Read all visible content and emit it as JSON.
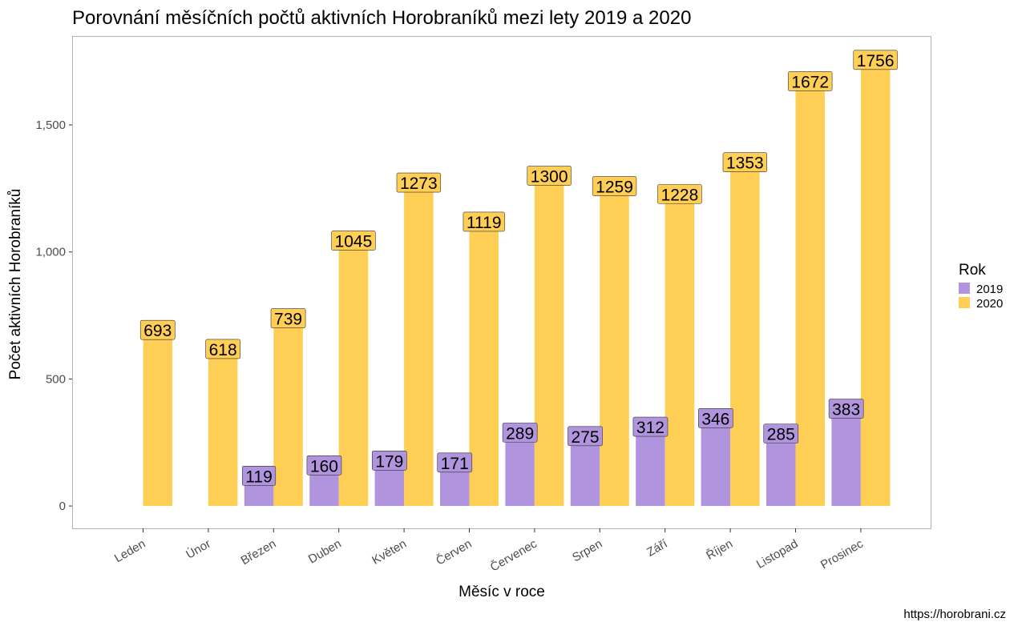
{
  "chart_data": {
    "type": "bar",
    "title": "Porovnání měsíčních počtů aktivních Horobraníků mezi lety 2019 a 2020",
    "xlabel": "Měsíc v roce",
    "ylabel": "Počet aktivních Horobraníků",
    "caption": "https://horobrani.cz",
    "categories": [
      "Leden",
      "Únor",
      "Březen",
      "Duben",
      "Květen",
      "Červen",
      "Červenec",
      "Srpen",
      "Září",
      "Říjen",
      "Listopad",
      "Prosinec"
    ],
    "series": [
      {
        "name": "2019",
        "color": "#b095de",
        "values": [
          null,
          null,
          119,
          160,
          179,
          171,
          289,
          275,
          312,
          346,
          285,
          383
        ]
      },
      {
        "name": "2020",
        "color": "#fece55",
        "values": [
          693,
          618,
          739,
          1045,
          1273,
          1119,
          1300,
          1259,
          1228,
          1353,
          1672,
          1756
        ]
      }
    ],
    "yticks": [
      0,
      500,
      1000,
      1500
    ],
    "ytick_labels": [
      "0",
      "500",
      "1,000",
      "1,500"
    ],
    "ylim": [
      -88,
      1850
    ],
    "legend": {
      "title": "Rok",
      "position": "right"
    },
    "grid": false
  }
}
